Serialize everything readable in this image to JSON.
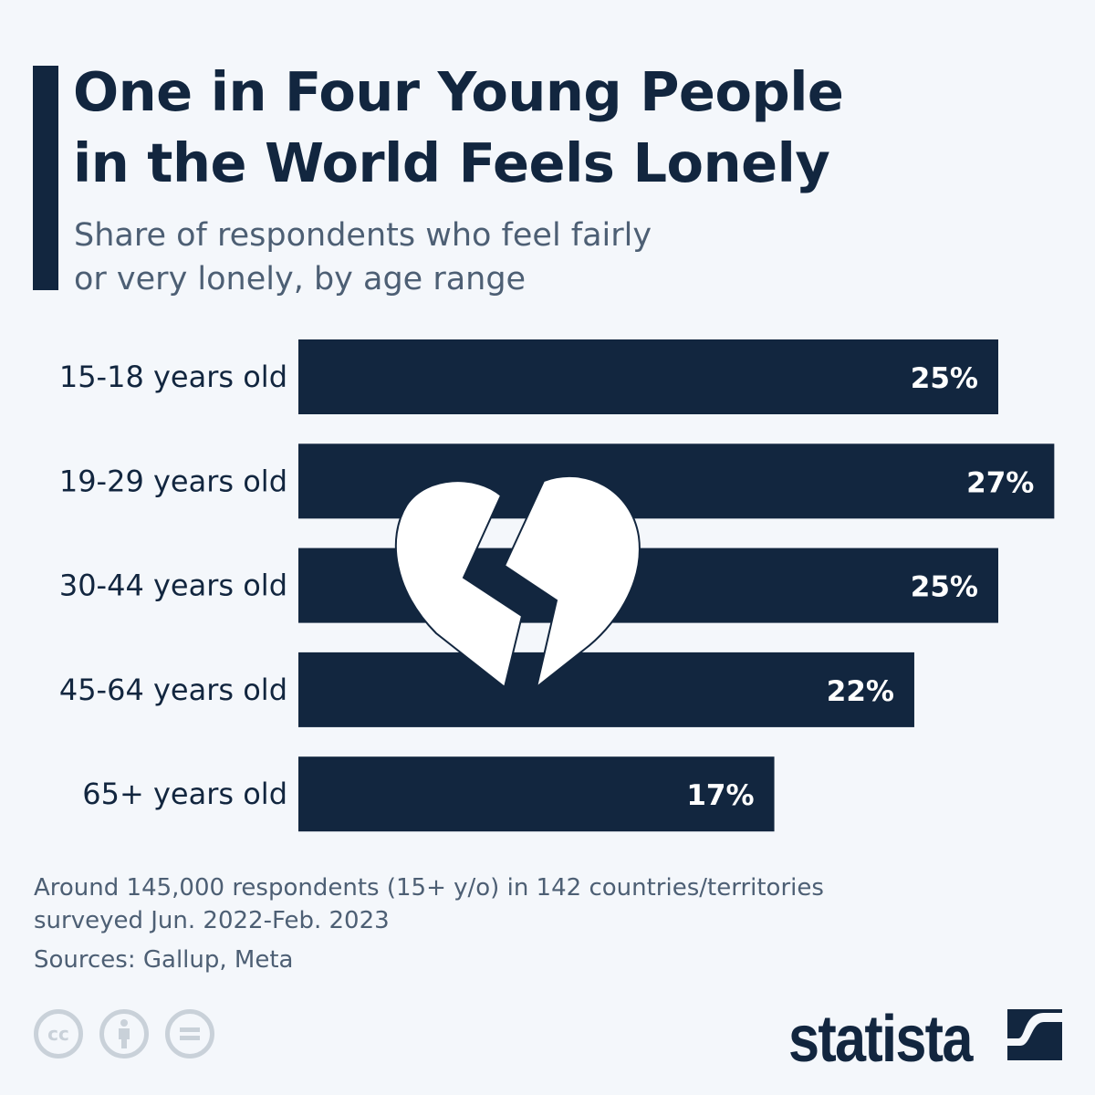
{
  "title": "One in Four Young People in the World Feels Lonely",
  "title_lines": [
    "One in Four Young People",
    "in the World Feels Lonely"
  ],
  "subtitle_lines": [
    "Share of respondents who feel fairly",
    "or very lonely, by age range"
  ],
  "chart_data": {
    "type": "bar",
    "orientation": "horizontal",
    "title": "One in Four Young People in the World Feels Lonely",
    "subtitle": "Share of respondents who feel fairly or very lonely, by age range",
    "categories": [
      "15-18 years old",
      "19-29 years old",
      "30-44 years old",
      "45-64 years old",
      "65+ years old"
    ],
    "values": [
      25,
      27,
      25,
      22,
      17
    ],
    "labels": [
      "25%",
      "27%",
      "25%",
      "22%",
      "17%"
    ],
    "unit": "%",
    "xlim": [
      0,
      27
    ],
    "grid": false,
    "bar_color": "#12263f",
    "label_color": "#ffffff",
    "decoration": "broken-heart-icon"
  },
  "notes": {
    "line1": "Around 145,000 respondents (15+ y/o) in 142 countries/territories",
    "line2": "surveyed Jun. 2022-Feb. 2023",
    "sources": "Sources: Gallup, Meta"
  },
  "footer": {
    "license_icons": [
      "cc-icon",
      "attribution-icon",
      "no-derivatives-icon"
    ],
    "cc_text": "cc",
    "logo": "statista"
  },
  "colors": {
    "background": "#f4f7fb",
    "primary": "#12263f",
    "muted": "#4d5f74",
    "icon_gray": "#c9d1d9"
  }
}
